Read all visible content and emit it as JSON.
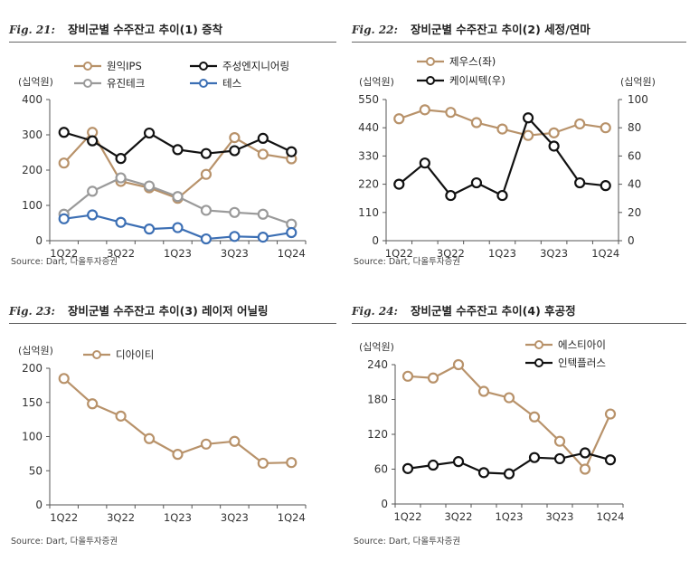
{
  "source_label": "Source: Dart, 다올투자증권",
  "colors": {
    "gold": "#B8926A",
    "black": "#111111",
    "gray": "#9A9A9A",
    "blue": "#3C6FB4",
    "axis": "#555555"
  },
  "chart_data": [
    {
      "type": "line",
      "fig_label": "Fig. 21:",
      "title": "장비군별 수주잔고 추이(1) 증착",
      "ylabel": "(십억원)",
      "ylim": [
        0,
        400
      ],
      "yticks": [
        0,
        100,
        200,
        300,
        400
      ],
      "categories": [
        "1Q22",
        "2Q22",
        "3Q22",
        "4Q22",
        "1Q23",
        "2Q23",
        "3Q23",
        "4Q23",
        "1Q24"
      ],
      "xtick_labels": [
        "1Q22",
        "3Q22",
        "1Q23",
        "3Q23",
        "1Q24"
      ],
      "series": [
        {
          "name": "원익IPS",
          "color": "gold",
          "values": [
            220,
            307,
            168,
            150,
            120,
            188,
            292,
            245,
            232
          ]
        },
        {
          "name": "주성엔지니어링",
          "color": "black",
          "values": [
            307,
            283,
            233,
            305,
            258,
            247,
            255,
            290,
            252
          ]
        },
        {
          "name": "유진테크",
          "color": "gray",
          "values": [
            75,
            140,
            178,
            155,
            125,
            86,
            80,
            75,
            47
          ]
        },
        {
          "name": "테스",
          "color": "blue",
          "values": [
            62,
            73,
            52,
            33,
            37,
            5,
            12,
            10,
            23
          ]
        }
      ]
    },
    {
      "type": "line",
      "fig_label": "Fig. 22:",
      "title": "장비군별 수주잔고 추이(2) 세정/연마",
      "ylabel": "(십억원)",
      "ylabel_right": "(십억원)",
      "ylim": [
        0,
        550
      ],
      "yticks": [
        0,
        110,
        220,
        330,
        440,
        550
      ],
      "ylim_right": [
        0,
        100
      ],
      "yticks_right": [
        0,
        20,
        40,
        60,
        80,
        100
      ],
      "categories": [
        "1Q22",
        "2Q22",
        "3Q22",
        "4Q22",
        "1Q23",
        "2Q23",
        "3Q23",
        "4Q23",
        "1Q24"
      ],
      "xtick_labels": [
        "1Q22",
        "3Q22",
        "1Q23",
        "3Q23",
        "1Q24"
      ],
      "series": [
        {
          "name": "제우스(좌)",
          "color": "gold",
          "axis": "left",
          "values": [
            475,
            510,
            500,
            460,
            435,
            410,
            420,
            455,
            440
          ]
        },
        {
          "name": "케이씨텍(우)",
          "color": "black",
          "axis": "right",
          "values": [
            40,
            55,
            32,
            41,
            32,
            87,
            67,
            41,
            39
          ]
        }
      ]
    },
    {
      "type": "line",
      "fig_label": "Fig. 23:",
      "title": "장비군별 수주잔고 추이(3) 레이저 어닐링",
      "ylabel": "(십억원)",
      "ylim": [
        0,
        200
      ],
      "yticks": [
        0,
        50,
        100,
        150,
        200
      ],
      "categories": [
        "1Q22",
        "2Q22",
        "3Q22",
        "4Q22",
        "1Q23",
        "2Q23",
        "3Q23",
        "4Q23",
        "1Q24"
      ],
      "xtick_labels": [
        "1Q22",
        "3Q22",
        "1Q23",
        "3Q23",
        "1Q24"
      ],
      "series": [
        {
          "name": "디아이티",
          "color": "gold",
          "values": [
            185,
            148,
            130,
            97,
            74,
            89,
            93,
            61,
            62
          ]
        }
      ]
    },
    {
      "type": "line",
      "fig_label": "Fig. 24:",
      "title": "장비군별 수주잔고 추이(4) 후공정",
      "ylabel": "(십억원)",
      "ylim": [
        0,
        240
      ],
      "yticks": [
        0,
        60,
        120,
        180,
        240
      ],
      "categories": [
        "1Q22",
        "2Q22",
        "3Q22",
        "4Q22",
        "1Q23",
        "2Q23",
        "3Q23",
        "4Q23",
        "1Q24"
      ],
      "xtick_labels": [
        "1Q22",
        "3Q22",
        "1Q23",
        "3Q23",
        "1Q24"
      ],
      "series": [
        {
          "name": "에스티아이",
          "color": "gold",
          "values": [
            220,
            217,
            240,
            194,
            183,
            150,
            108,
            60,
            155
          ]
        },
        {
          "name": "인텍플러스",
          "color": "black",
          "values": [
            61,
            67,
            73,
            54,
            52,
            80,
            78,
            88,
            76
          ]
        }
      ]
    }
  ]
}
